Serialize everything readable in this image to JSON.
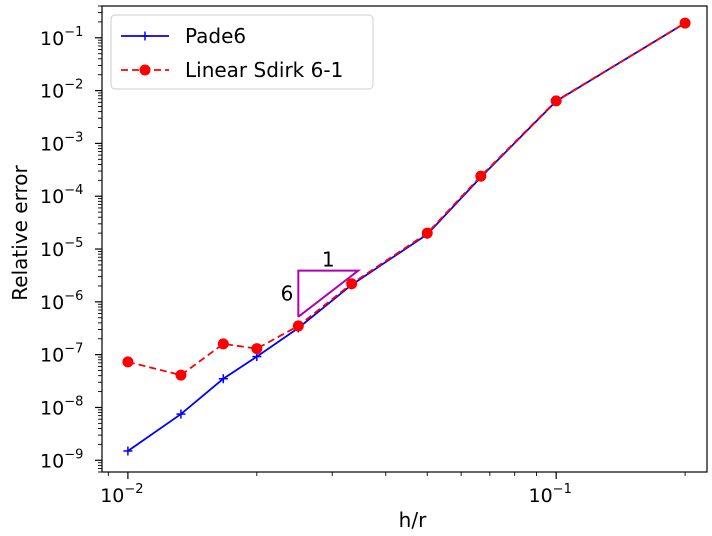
{
  "chart_data": {
    "type": "line",
    "xlabel": "h/r",
    "ylabel": "Relative error",
    "xscale": "log",
    "yscale": "log",
    "xlim": [
      0.0087,
      0.225
    ],
    "ylim": [
      6e-10,
      0.4
    ],
    "x_ticks": [
      {
        "value": 0.01,
        "base": "10",
        "exp": "−2"
      },
      {
        "value": 0.1,
        "base": "10",
        "exp": "−1"
      }
    ],
    "y_ticks": [
      {
        "value": 1e-09,
        "base": "10",
        "exp": "−9"
      },
      {
        "value": 1e-08,
        "base": "10",
        "exp": "−8"
      },
      {
        "value": 1e-07,
        "base": "10",
        "exp": "−7"
      },
      {
        "value": 1e-06,
        "base": "10",
        "exp": "−6"
      },
      {
        "value": 1e-05,
        "base": "10",
        "exp": "−5"
      },
      {
        "value": 0.0001,
        "base": "10",
        "exp": "−4"
      },
      {
        "value": 0.001,
        "base": "10",
        "exp": "−3"
      },
      {
        "value": 0.01,
        "base": "10",
        "exp": "−2"
      },
      {
        "value": 0.1,
        "base": "10",
        "exp": "−1"
      }
    ],
    "legend_position": "top-left",
    "series": [
      {
        "name": "Pade6",
        "color": "#0000ff",
        "linestyle": "solid",
        "marker": "plus",
        "x": [
          0.01,
          0.0133,
          0.0167,
          0.02,
          0.025,
          0.0333,
          0.05,
          0.0667,
          0.1,
          0.2
        ],
        "y": [
          1.5e-09,
          7.5e-09,
          3.5e-08,
          9.2e-08,
          3.2e-07,
          2.1e-06,
          1.9e-05,
          0.00023,
          0.0063,
          0.19
        ]
      },
      {
        "name": "Linear Sdirk 6-1",
        "color": "#ff0000",
        "linestyle": "dashed",
        "marker": "circle",
        "x": [
          0.01,
          0.0133,
          0.0167,
          0.02,
          0.025,
          0.0333,
          0.05,
          0.0667,
          0.1,
          0.2
        ],
        "y": [
          7.3e-08,
          4.1e-08,
          1.6e-07,
          1.3e-07,
          3.5e-07,
          2.2e-06,
          2e-05,
          0.00024,
          0.0064,
          0.19
        ]
      }
    ],
    "annotations": {
      "slope_triangle": {
        "color": "#b000b0",
        "x_left": 0.025,
        "x_right": 0.0345,
        "y_bottom": 5.2e-07,
        "y_top": 3.9e-06,
        "run_label": "1",
        "rise_label": "6"
      }
    }
  }
}
